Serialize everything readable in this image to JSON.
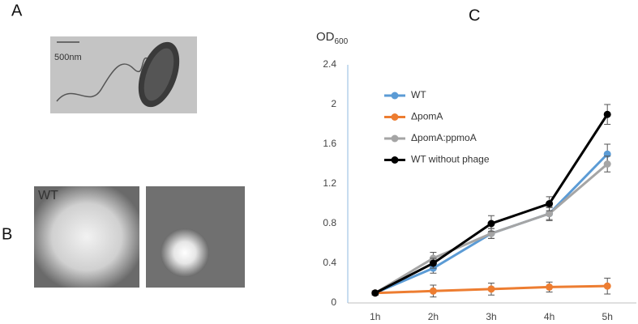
{
  "panels": {
    "a": {
      "label": "A",
      "scale_bar": "500nm"
    },
    "b": {
      "label": "B",
      "image_label": "WT"
    }
  },
  "chart_data": {
    "type": "line",
    "panel_label": "C",
    "y_label": "OD",
    "y_label_subscript": "600",
    "categories": [
      "1h",
      "2h",
      "3h",
      "4h",
      "5h"
    ],
    "ylim": [
      0,
      2.4
    ],
    "yticks": [
      0,
      0.4,
      0.8,
      1.2,
      1.6,
      2,
      2.4
    ],
    "grid": false,
    "series": [
      {
        "name": "WT",
        "color": "#5b9bd5",
        "values": [
          0.1,
          0.35,
          0.7,
          0.9,
          1.5
        ],
        "errors": [
          0.02,
          0.05,
          0.05,
          0.06,
          0.1
        ]
      },
      {
        "name": "ΔpomA",
        "color": "#ed7d31",
        "values": [
          0.1,
          0.12,
          0.14,
          0.16,
          0.17
        ],
        "errors": [
          0.02,
          0.06,
          0.06,
          0.05,
          0.08
        ]
      },
      {
        "name": "ΔpomA:ppmoA",
        "color": "#a5a5a5",
        "values": [
          0.1,
          0.45,
          0.7,
          0.9,
          1.4
        ],
        "errors": [
          0.02,
          0.06,
          0.05,
          0.07,
          0.08
        ]
      },
      {
        "name": "WT without phage",
        "color": "#000000",
        "values": [
          0.1,
          0.4,
          0.8,
          1.0,
          1.9
        ],
        "errors": [
          0.02,
          0.05,
          0.08,
          0.07,
          0.1
        ]
      }
    ]
  }
}
